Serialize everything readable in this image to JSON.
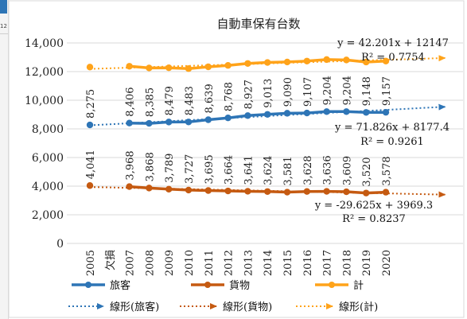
{
  "ui": {
    "edge_text": "12"
  },
  "chart_data": {
    "type": "line",
    "title": "自動車保有台数",
    "x": [
      "2005",
      "欠損",
      "2007",
      "2008",
      "2009",
      "2010",
      "2011",
      "2012",
      "2013",
      "2014",
      "2015",
      "2016",
      "2017",
      "2018",
      "2019",
      "2020"
    ],
    "ylim": [
      0,
      14000
    ],
    "yticks": [
      "0",
      "2,000",
      "4,000",
      "6,000",
      "8,000",
      "10,000",
      "12,000",
      "14,000"
    ],
    "grid": true,
    "legend_position": "bottom",
    "series": [
      {
        "name": "旅客",
        "color": "#2e75b6",
        "values": [
          8275,
          null,
          8406,
          8385,
          8479,
          8483,
          8639,
          8768,
          8927,
          9013,
          9090,
          9107,
          9204,
          9204,
          9148,
          9157
        ],
        "labels": [
          "8,275",
          null,
          "8,406",
          "8,385",
          "8,479",
          "8,483",
          "8,639",
          "8,768",
          "8,927",
          "9,013",
          "9,090",
          "9,107",
          "9,204",
          "9,204",
          "9,148",
          "9,157"
        ]
      },
      {
        "name": "貨物",
        "color": "#c55a11",
        "values": [
          4041,
          null,
          3968,
          3868,
          3789,
          3727,
          3695,
          3664,
          3641,
          3624,
          3581,
          3628,
          3636,
          3609,
          3520,
          3578
        ],
        "labels": [
          "4,041",
          null,
          "3,968",
          "3,868",
          "3,789",
          "3,727",
          "3,695",
          "3,664",
          "3,641",
          "3,624",
          "3,581",
          "3,628",
          "3,636",
          "3,609",
          "3,520",
          "3,578"
        ]
      },
      {
        "name": "計",
        "color": "#ffa31a",
        "values": [
          12316,
          null,
          12374,
          12253,
          12268,
          12210,
          12334,
          12432,
          12568,
          12637,
          12671,
          12735,
          12840,
          12813,
          12668,
          12735
        ],
        "labels": []
      }
    ],
    "trendlines": [
      {
        "name": "線形(旅客)",
        "color": "#2e75b6",
        "slope": 71.826,
        "intercept": 8177.4,
        "equation": "y = 71.826x + 8177.4",
        "r2": "R² = 0.9261"
      },
      {
        "name": "線形(貨物)",
        "color": "#c55a11",
        "slope": -29.625,
        "intercept": 3969.3,
        "equation": "y = -29.625x + 3969.3",
        "r2": "R² = 0.8237"
      },
      {
        "name": "線形(計)",
        "color": "#ffa31a",
        "slope": 42.201,
        "intercept": 12147,
        "equation": "y = 42.201x + 12147",
        "r2": "R² = 0.7754"
      }
    ]
  }
}
